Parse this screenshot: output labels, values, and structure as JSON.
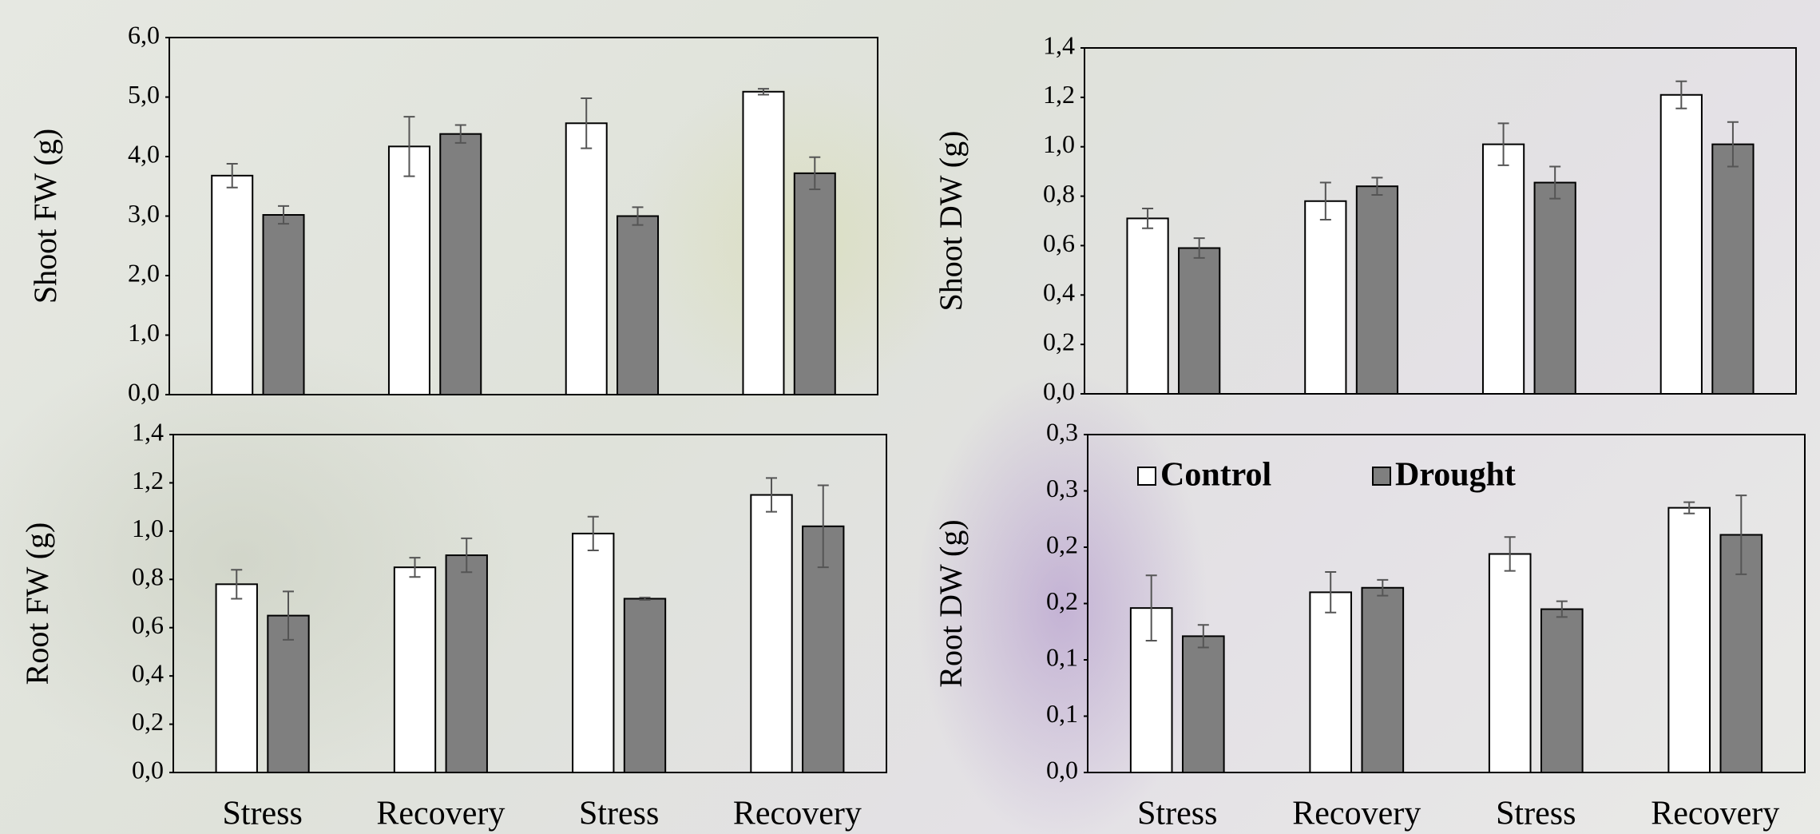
{
  "chart_data": [
    {
      "type": "bar",
      "ylabel": "Shoot FW (g)",
      "series": [
        {
          "color": "#ffffff",
          "values": [
            3.68,
            4.17,
            4.56,
            5.09
          ],
          "errors": [
            0.2,
            0.5,
            0.42,
            0.05
          ]
        },
        {
          "color": "#7f7f7f",
          "values": [
            3.02,
            4.38,
            3.0,
            3.72
          ],
          "errors": [
            0.15,
            0.15,
            0.15,
            0.27
          ]
        }
      ],
      "ylim": [
        0,
        6
      ],
      "yticks": [
        {
          "value": 0,
          "label": "0,0"
        },
        {
          "value": 1,
          "label": "1,0"
        },
        {
          "value": 2,
          "label": "2,0"
        },
        {
          "value": 3,
          "label": "3,0"
        },
        {
          "value": 4,
          "label": "4,0"
        },
        {
          "value": 5,
          "label": "5,0"
        },
        {
          "value": 6,
          "label": "6,0"
        }
      ]
    },
    {
      "type": "bar",
      "ylabel": "Shoot DW (g)",
      "series": [
        {
          "color": "#ffffff",
          "values": [
            0.71,
            0.78,
            1.01,
            1.21
          ],
          "errors": [
            0.04,
            0.075,
            0.085,
            0.055
          ]
        },
        {
          "color": "#7f7f7f",
          "values": [
            0.59,
            0.84,
            0.855,
            1.01
          ],
          "errors": [
            0.04,
            0.035,
            0.065,
            0.09
          ]
        }
      ],
      "ylim": [
        0,
        1.4
      ],
      "yticks": [
        {
          "value": 0,
          "label": "0,0"
        },
        {
          "value": 0.2,
          "label": "0,2"
        },
        {
          "value": 0.4,
          "label": "0,4"
        },
        {
          "value": 0.6,
          "label": "0,6"
        },
        {
          "value": 0.8,
          "label": "0,8"
        },
        {
          "value": 1.0,
          "label": "1,0"
        },
        {
          "value": 1.2,
          "label": "1,2"
        },
        {
          "value": 1.4,
          "label": "1,4"
        }
      ]
    },
    {
      "type": "bar",
      "ylabel": "Root FW (g)",
      "categories": [
        "Stress",
        "Recovery",
        "Stress",
        "Recovery"
      ],
      "series": [
        {
          "color": "#ffffff",
          "values": [
            0.78,
            0.85,
            0.99,
            1.15
          ],
          "errors": [
            0.06,
            0.04,
            0.07,
            0.07
          ]
        },
        {
          "color": "#7f7f7f",
          "values": [
            0.65,
            0.9,
            0.72,
            1.02
          ],
          "errors": [
            0.1,
            0.07,
            0.005,
            0.17
          ]
        }
      ],
      "ylim": [
        0,
        1.4
      ],
      "yticks": [
        {
          "value": 0,
          "label": "0,0"
        },
        {
          "value": 0.2,
          "label": "0,2"
        },
        {
          "value": 0.4,
          "label": "0,4"
        },
        {
          "value": 0.6,
          "label": "0,6"
        },
        {
          "value": 0.8,
          "label": "0,8"
        },
        {
          "value": 1.0,
          "label": "1,0"
        },
        {
          "value": 1.2,
          "label": "1,2"
        },
        {
          "value": 1.4,
          "label": "1,4"
        }
      ]
    },
    {
      "type": "bar",
      "ylabel": "Root DW (g)",
      "categories": [
        "Stress",
        "Recovery",
        "Stress",
        "Recovery"
      ],
      "legend": "upper left",
      "series": [
        {
          "name": "Control",
          "color": "#ffffff",
          "values": [
            0.146,
            0.16,
            0.194,
            0.235
          ],
          "errors": [
            0.029,
            0.018,
            0.015,
            0.005
          ]
        },
        {
          "name": "Drought",
          "color": "#7f7f7f",
          "values": [
            0.121,
            0.164,
            0.145,
            0.211
          ],
          "errors": [
            0.01,
            0.007,
            0.007,
            0.035
          ]
        }
      ],
      "ylim": [
        0,
        0.3
      ],
      "yticks": [
        {
          "value": 0,
          "label": "0,0"
        },
        {
          "value": 0.05,
          "label": "0,1"
        },
        {
          "value": 0.1,
          "label": "0,1"
        },
        {
          "value": 0.15,
          "label": "0,2"
        },
        {
          "value": 0.2,
          "label": "0,2"
        },
        {
          "value": 0.25,
          "label": "0,3"
        },
        {
          "value": 0.3,
          "label": "0,3"
        }
      ]
    }
  ]
}
